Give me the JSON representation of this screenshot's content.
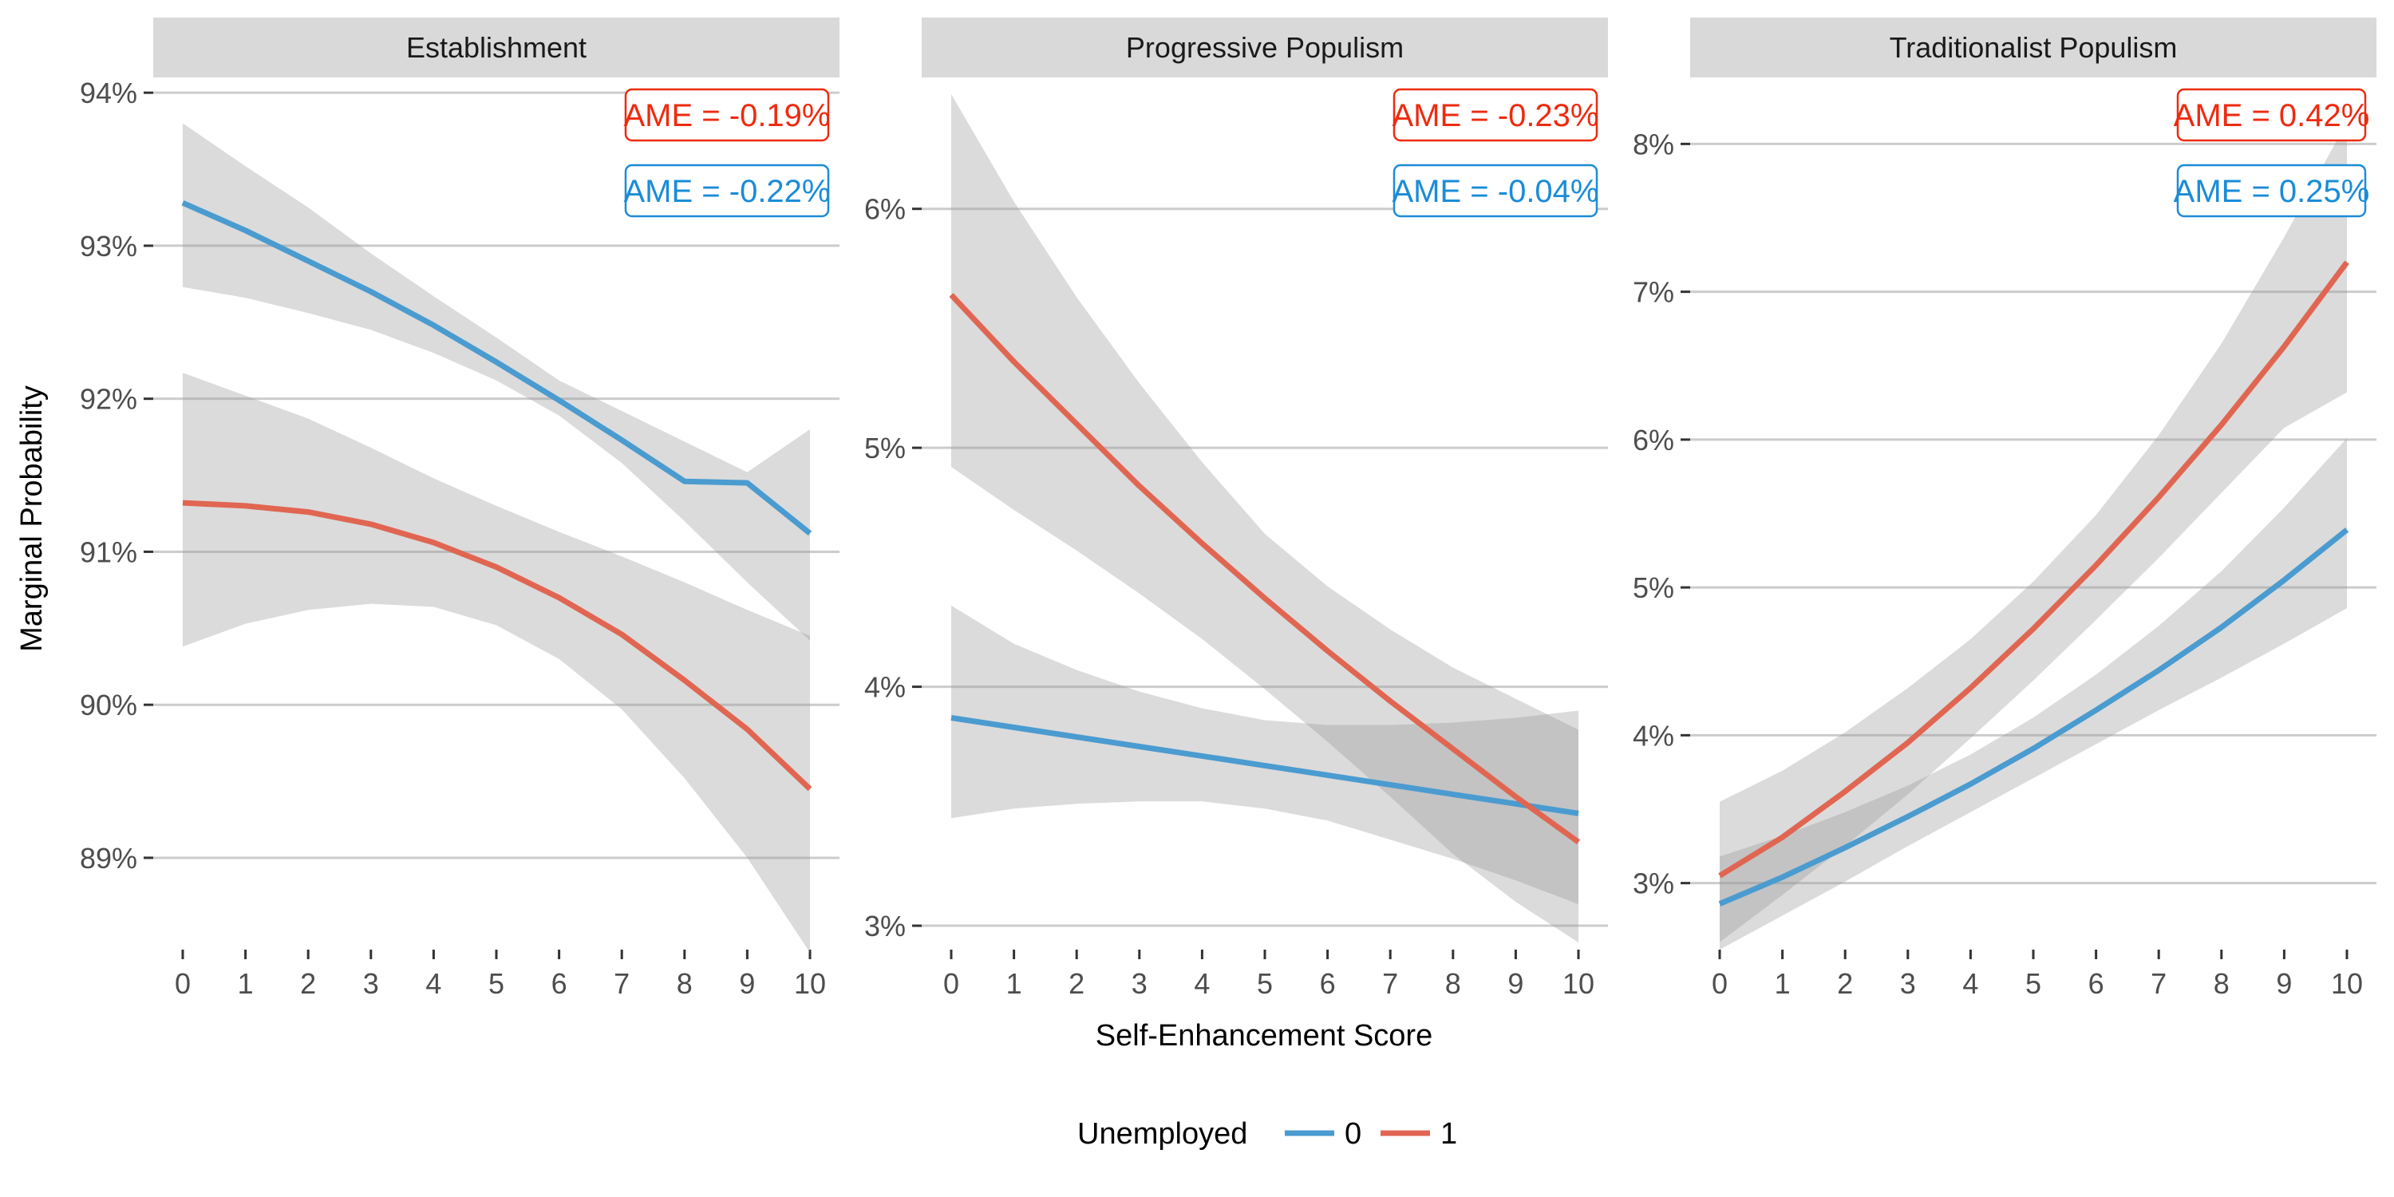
{
  "chart_data": {
    "type": "line",
    "xlabel": "Self-Enhancement Score",
    "ylabel": "Marginal Probability",
    "x_ticks": [
      "0",
      "1",
      "2",
      "3",
      "4",
      "5",
      "6",
      "7",
      "8",
      "9",
      "10"
    ],
    "legend": {
      "title": "Unemployed",
      "entries": [
        "0",
        "1"
      ],
      "placement": "bottom"
    },
    "colors": {
      "0": "#4a9bd0",
      "1": "#e06652",
      "ame_0": "#1a8cd8",
      "ame_1": "#ee2a0f"
    },
    "panels": [
      {
        "title": "Establishment",
        "ylim": [
          88.4,
          94.1
        ],
        "y_ticks": [
          89,
          90,
          91,
          92,
          93,
          94
        ],
        "y_tick_labels": [
          "89%",
          "90%",
          "91%",
          "92%",
          "93%",
          "94%"
        ],
        "ame": {
          "1": "AME = -0.19%",
          "0": "AME = -0.22%"
        },
        "series": [
          {
            "name": "0",
            "x": [
              0,
              1,
              2,
              3,
              4,
              5,
              6,
              7,
              8,
              9,
              10
            ],
            "y": [
              93.28,
              93.1,
              92.9,
              92.7,
              92.48,
              92.24,
              91.99,
              91.73,
              91.46,
              91.45,
              91.12
            ],
            "lower": [
              92.73,
              92.66,
              92.56,
              92.45,
              92.3,
              92.12,
              91.89,
              91.58,
              91.2,
              90.8,
              90.42
            ],
            "upper": [
              93.8,
              93.52,
              93.25,
              92.95,
              92.67,
              92.4,
              92.12,
              91.92,
              91.72,
              91.52,
              91.8
            ]
          },
          {
            "name": "1",
            "x": [
              0,
              1,
              2,
              3,
              4,
              5,
              6,
              7,
              8,
              9,
              10
            ],
            "y": [
              91.32,
              91.3,
              91.26,
              91.18,
              91.06,
              90.9,
              90.7,
              90.46,
              90.16,
              89.84,
              89.45
            ],
            "lower": [
              90.38,
              90.53,
              90.62,
              90.66,
              90.64,
              90.52,
              90.3,
              89.97,
              89.52,
              89.0,
              88.38
            ],
            "upper": [
              92.17,
              92.02,
              91.87,
              91.68,
              91.48,
              91.3,
              91.13,
              90.97,
              90.8,
              90.62,
              90.45
            ]
          }
        ]
      },
      {
        "title": "Progressive Populism",
        "ylim": [
          2.9,
          6.55
        ],
        "y_ticks": [
          3,
          4,
          5,
          6
        ],
        "y_tick_labels": [
          "3%",
          "4%",
          "5%",
          "6%"
        ],
        "ame": {
          "1": "AME = -0.23%",
          "0": "AME = -0.04%"
        },
        "series": [
          {
            "name": "0",
            "x": [
              0,
              1,
              2,
              3,
              4,
              5,
              6,
              7,
              8,
              9,
              10
            ],
            "y": [
              3.87,
              3.83,
              3.79,
              3.75,
              3.71,
              3.67,
              3.63,
              3.59,
              3.55,
              3.51,
              3.47
            ],
            "lower": [
              3.45,
              3.49,
              3.51,
              3.52,
              3.52,
              3.49,
              3.44,
              3.36,
              3.28,
              3.19,
              3.09
            ],
            "upper": [
              4.34,
              4.18,
              4.07,
              3.98,
              3.91,
              3.86,
              3.84,
              3.84,
              3.85,
              3.87,
              3.9
            ]
          },
          {
            "name": "1",
            "x": [
              0,
              1,
              2,
              3,
              4,
              5,
              6,
              7,
              8,
              9,
              10
            ],
            "y": [
              5.64,
              5.36,
              5.1,
              4.84,
              4.6,
              4.37,
              4.15,
              3.94,
              3.74,
              3.54,
              3.35
            ],
            "lower": [
              4.92,
              4.74,
              4.57,
              4.39,
              4.2,
              3.99,
              3.77,
              3.54,
              3.3,
              3.1,
              2.93
            ],
            "upper": [
              6.48,
              6.03,
              5.63,
              5.27,
              4.94,
              4.64,
              4.42,
              4.24,
              4.08,
              3.95,
              3.82
            ]
          }
        ]
      },
      {
        "title": "Traditionalist Populism",
        "ylim": [
          2.55,
          8.45
        ],
        "y_ticks": [
          3,
          4,
          5,
          6,
          7,
          8
        ],
        "y_tick_labels": [
          "3%",
          "4%",
          "5%",
          "6%",
          "7%",
          "8%"
        ],
        "ame": {
          "1": "AME = 0.42%",
          "0": "AME = 0.25%"
        },
        "series": [
          {
            "name": "0",
            "x": [
              0,
              1,
              2,
              3,
              4,
              5,
              6,
              7,
              8,
              9,
              10
            ],
            "y": [
              2.86,
              3.04,
              3.24,
              3.45,
              3.67,
              3.91,
              4.17,
              4.44,
              4.73,
              5.05,
              5.39
            ],
            "lower": [
              2.55,
              2.78,
              3.01,
              3.25,
              3.48,
              3.71,
              3.94,
              4.17,
              4.39,
              4.62,
              4.86
            ],
            "upper": [
              3.18,
              3.32,
              3.48,
              3.66,
              3.87,
              4.12,
              4.41,
              4.74,
              5.11,
              5.54,
              6.01
            ]
          },
          {
            "name": "1",
            "x": [
              0,
              1,
              2,
              3,
              4,
              5,
              6,
              7,
              8,
              9,
              10
            ],
            "y": [
              3.05,
              3.31,
              3.62,
              3.95,
              4.32,
              4.72,
              5.15,
              5.61,
              6.1,
              6.63,
              7.2
            ],
            "lower": [
              2.6,
              2.92,
              3.25,
              3.6,
              3.98,
              4.37,
              4.78,
              5.2,
              5.64,
              6.08,
              6.32
            ],
            "upper": [
              3.55,
              3.76,
              4.02,
              4.32,
              4.65,
              5.04,
              5.49,
              6.03,
              6.65,
              7.37,
              8.15
            ]
          }
        ]
      }
    ]
  }
}
